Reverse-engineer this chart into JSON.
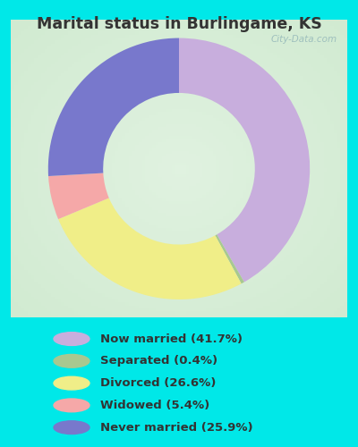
{
  "title": "Marital status in Burlingame, KS",
  "categories": [
    "Now married",
    "Separated",
    "Divorced",
    "Widowed",
    "Never married"
  ],
  "values": [
    41.7,
    0.4,
    26.6,
    5.4,
    25.9
  ],
  "colors": [
    "#c8aedd",
    "#a8c890",
    "#f0ee88",
    "#f5a8a8",
    "#7878cc"
  ],
  "background_outer": "#00e8e8",
  "title_color": "#333333",
  "legend_labels": [
    "Now married (41.7%)",
    "Separated (0.4%)",
    "Divorced (26.6%)",
    "Widowed (5.4%)",
    "Never married (25.9%)"
  ],
  "watermark": "City-Data.com",
  "figsize": [
    4.0,
    5.0
  ],
  "dpi": 100
}
